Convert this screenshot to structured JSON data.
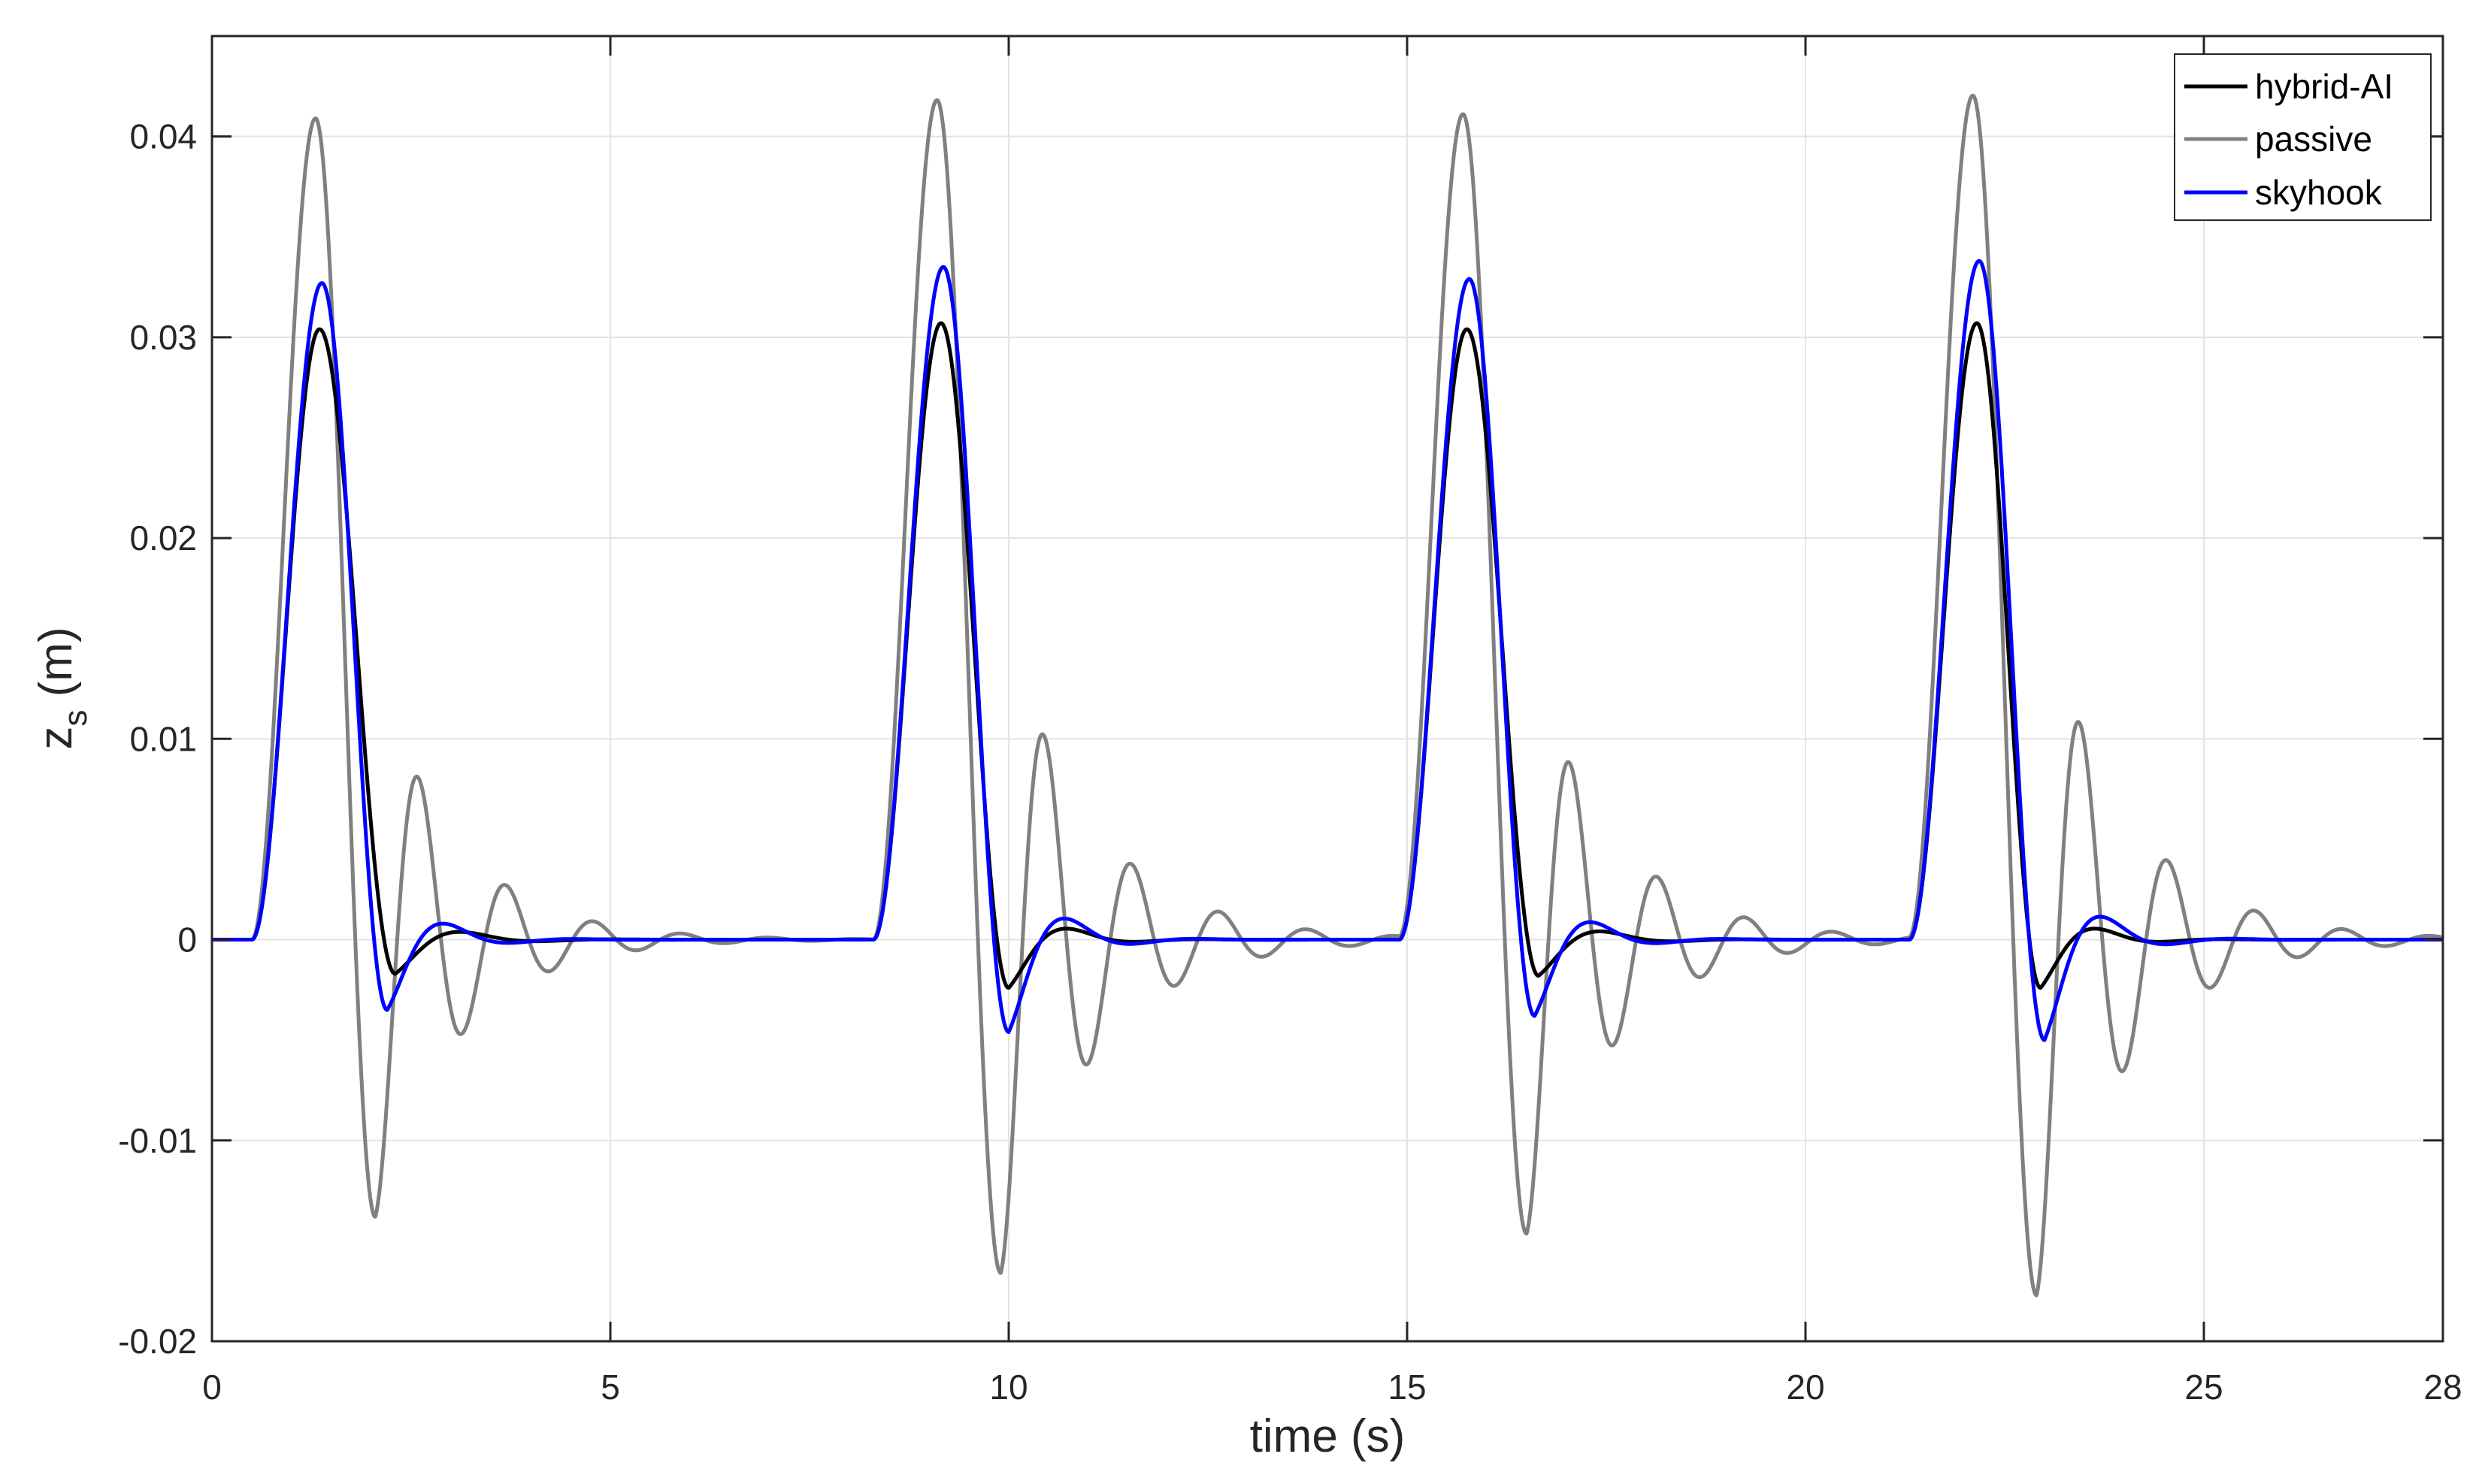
{
  "chart_data": {
    "type": "line",
    "title": "",
    "xlabel": "time (s)",
    "ylabel": {
      "main": "z",
      "sub": "s",
      "unit": " (m)"
    },
    "xlim": [
      0,
      28
    ],
    "ylim": [
      -0.02,
      0.045
    ],
    "xticks": [
      0,
      5,
      10,
      15,
      20,
      25,
      28
    ],
    "xtick_labels": [
      "0",
      "5",
      "10",
      "15",
      "20",
      "25",
      "28"
    ],
    "yticks": [
      -0.02,
      -0.01,
      0,
      0.01,
      0.02,
      0.03,
      0.04
    ],
    "ytick_labels": [
      "-0.02",
      "-0.01",
      "0",
      "0.01",
      "0.02",
      "0.03",
      "0.04"
    ],
    "grid": true,
    "legend_position": "top-right",
    "pulse_times": [
      0.5,
      8.3,
      14.9,
      21.3
    ],
    "series": [
      {
        "name": "hybrid-AI",
        "color": "#000000",
        "peaks": [
          0.0304,
          0.0307,
          0.0304,
          0.0307
        ],
        "peak_times": [
          1.35,
          9.15,
          15.75,
          22.15
        ],
        "first_min": [
          -0.0017,
          -0.0024,
          -0.0018,
          -0.0024
        ],
        "first_min_times": [
          2.3,
          10.0,
          16.65,
          22.95
        ]
      },
      {
        "name": "passive",
        "color": "#808080",
        "peaks": [
          0.0409,
          0.0418,
          0.0411,
          0.0421
        ],
        "peak_times": [
          1.3,
          9.1,
          15.7,
          22.1
        ],
        "first_min": [
          -0.0138,
          -0.0166,
          -0.0146,
          -0.0177
        ],
        "first_min_times": [
          2.05,
          9.9,
          16.5,
          22.9
        ],
        "second_max": [
          0.008,
          0.0101,
          0.0087,
          0.0107
        ],
        "second_max_times": [
          2.6,
          10.45,
          17.05,
          23.45
        ]
      },
      {
        "name": "skyhook",
        "color": "#0000ff",
        "peaks": [
          0.0327,
          0.0335,
          0.0329,
          0.0338
        ],
        "peak_times": [
          1.38,
          9.18,
          15.78,
          22.18
        ],
        "first_min": [
          -0.0035,
          -0.0046,
          -0.0038,
          -0.005
        ],
        "first_min_times": [
          2.2,
          10.0,
          16.6,
          23.0
        ]
      }
    ]
  }
}
